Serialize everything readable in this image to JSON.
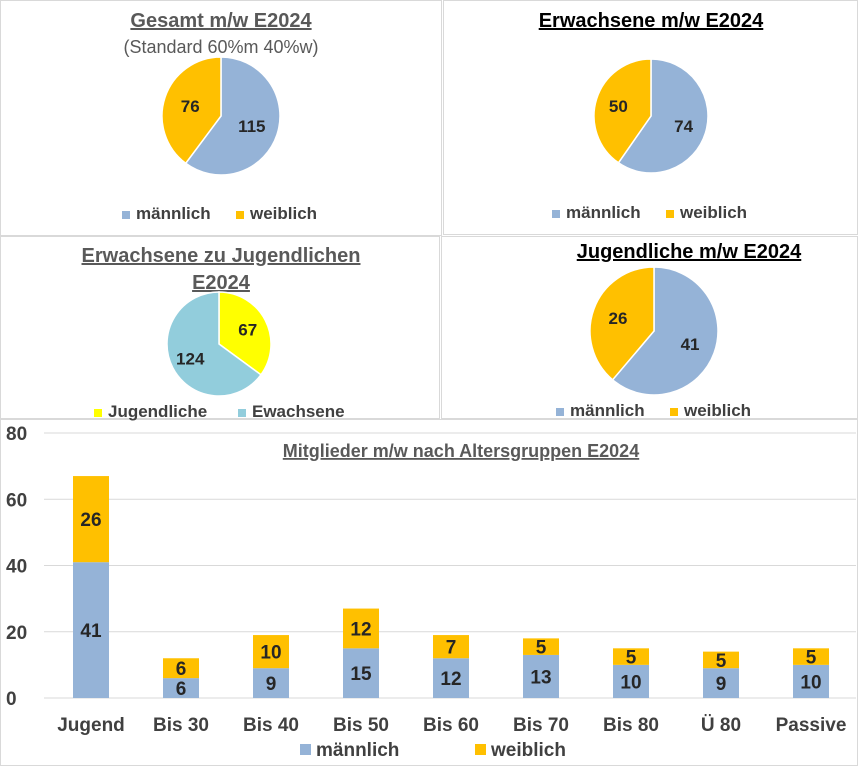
{
  "colors": {
    "maennlich": "#95b3d7",
    "weiblich": "#ffc000",
    "jugendliche": "#ffff00",
    "erwachsene": "#92cddc",
    "title_grey": "#595959",
    "label_dark": "#262626",
    "axis_text": "#404040",
    "grid": "#d9d9d9"
  },
  "chart_data": [
    {
      "type": "pie",
      "title": "Gesamt m/w E2024",
      "subtitle": "(Standard 60%m 40%w)",
      "categories": [
        "männlich",
        "weiblich"
      ],
      "values": [
        115,
        76
      ],
      "legend": "bottom"
    },
    {
      "type": "pie",
      "title": "Erwachsene m/w E2024",
      "categories": [
        "männlich",
        "weiblich"
      ],
      "values": [
        74,
        50
      ],
      "legend": "bottom"
    },
    {
      "type": "pie",
      "title": "Erwachsene zu Jugendlichen E2024",
      "title_lines": [
        "Erwachsene zu Jugendlichen",
        "E2024"
      ],
      "categories": [
        "Jugendliche",
        "Ewachsene"
      ],
      "values": [
        67,
        124
      ],
      "legend": "bottom"
    },
    {
      "type": "pie",
      "title": "Jugendliche m/w E2024",
      "categories": [
        "männlich",
        "weiblich"
      ],
      "values": [
        41,
        26
      ],
      "legend": "bottom"
    },
    {
      "type": "bar",
      "stacked": true,
      "title": "Mitglieder m/w nach Altersgruppen E2024",
      "categories": [
        "Jugend",
        "Bis 30",
        "Bis 40",
        "Bis 50",
        "Bis 60",
        "Bis 70",
        "Bis 80",
        "Ü 80",
        "Passive"
      ],
      "series": [
        {
          "name": "männlich",
          "values": [
            41,
            6,
            9,
            15,
            12,
            13,
            10,
            9,
            10
          ]
        },
        {
          "name": "weiblich",
          "values": [
            26,
            6,
            10,
            12,
            7,
            5,
            5,
            5,
            5
          ]
        }
      ],
      "ylim": [
        0,
        80
      ],
      "yticks": [
        0,
        20,
        40,
        60,
        80
      ],
      "grid": true,
      "legend": "bottom"
    }
  ]
}
